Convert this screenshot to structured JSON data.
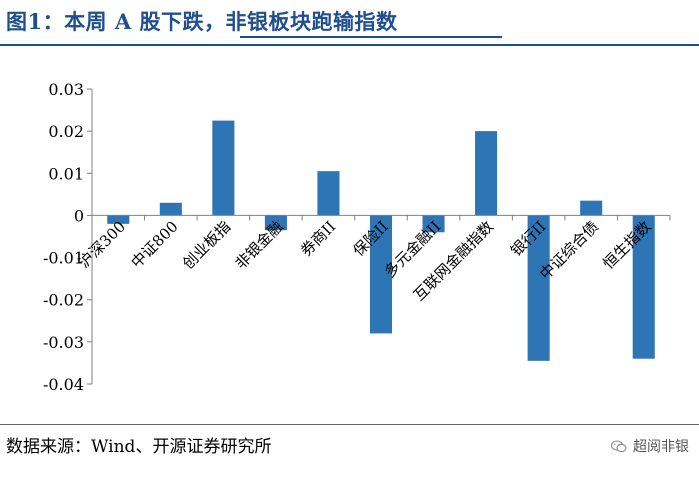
{
  "header": {
    "title": "图1：本周 A 股下跌，非银板块跑输指数"
  },
  "footer": {
    "source": "数据来源：Wind、开源证券研究所",
    "watermark": "超阅非银",
    "watermark_icon": "wechat-icon"
  },
  "chart_data": {
    "type": "bar",
    "title": "",
    "xlabel": "",
    "ylabel": "",
    "categories": [
      "沪深300",
      "中证800",
      "创业板指",
      "非银金融",
      "券商II",
      "保险II",
      "多元金融II",
      "互联网金融指数",
      "银行II",
      "中证综合债",
      "恒生指数"
    ],
    "values": [
      -0.002,
      0.003,
      0.0225,
      -0.0035,
      0.0105,
      -0.028,
      -0.004,
      0.02,
      -0.0345,
      0.0035,
      -0.034
    ],
    "ylim": [
      -0.04,
      0.03
    ],
    "yticks": [
      0.03,
      0.02,
      0.01,
      0,
      -0.01,
      -0.02,
      -0.03,
      -0.04
    ],
    "ytick_labels": [
      "0.03",
      "0.02",
      "0.01",
      "0",
      "-0.01",
      "-0.02",
      "-0.03",
      "-0.04"
    ],
    "grid": false,
    "legend": false,
    "bar_color": "#2e75b6"
  }
}
